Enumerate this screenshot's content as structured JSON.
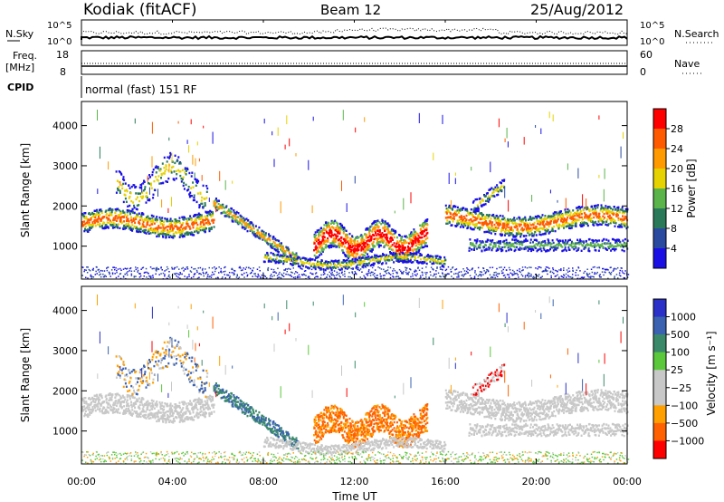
{
  "header": {
    "station": "Kodiak (fitACF)",
    "beam": "Beam 12",
    "date": "25/Aug/2012"
  },
  "panels": {
    "nsky_label": "N.Sky",
    "nsearch_label": "N.Search",
    "nsky_ticks": [
      "10^5",
      "10^0"
    ],
    "nsearch_ticks": [
      "10^5",
      "10^0"
    ],
    "freq_label_1": "Freq.",
    "freq_label_2": "[MHz]",
    "freq_ticks": [
      "18",
      "8"
    ],
    "nave_label": "Nave",
    "nave_ticks": [
      "60",
      "0"
    ],
    "cpid_label": "CPID",
    "cpid_text": "normal (fast) 151 RF"
  },
  "chart_data": [
    {
      "type": "heatmap",
      "name": "power",
      "ylabel": "Slant Range [km]",
      "ylim": [
        180,
        4600
      ],
      "yticks": [
        "1000",
        "2000",
        "3000",
        "4000"
      ],
      "colorbar": {
        "label": "Power [dB]",
        "ticks": [
          "28",
          "24",
          "20",
          "16",
          "12",
          "8",
          "4"
        ],
        "colors": [
          "#ff0000",
          "#ff5a00",
          "#ff9a00",
          "#e6d200",
          "#5ab44a",
          "#2a7a5a",
          "#2a4aa0",
          "#1a10e6"
        ]
      }
    },
    {
      "type": "heatmap",
      "name": "velocity",
      "ylabel": "Slant Range [km]",
      "ylim": [
        180,
        4600
      ],
      "yticks": [
        "1000",
        "2000",
        "3000",
        "4000"
      ],
      "colorbar": {
        "label": "Velocity [m s⁻¹]",
        "ticks": [
          "1000",
          "500",
          "100",
          "25",
          "−25",
          "−100",
          "−500",
          "−1000"
        ],
        "colors": [
          "#2a30c8",
          "#3a62b0",
          "#3a8a6a",
          "#5ac83a",
          "#c8c8c8",
          "#c8c8c8",
          "#ffa000",
          "#ff6000",
          "#ff0000"
        ]
      }
    }
  ],
  "xaxis": {
    "label": "Time UT",
    "ticks": [
      "00:00",
      "04:00",
      "08:00",
      "12:00",
      "16:00",
      "20:00",
      "00:00"
    ]
  }
}
